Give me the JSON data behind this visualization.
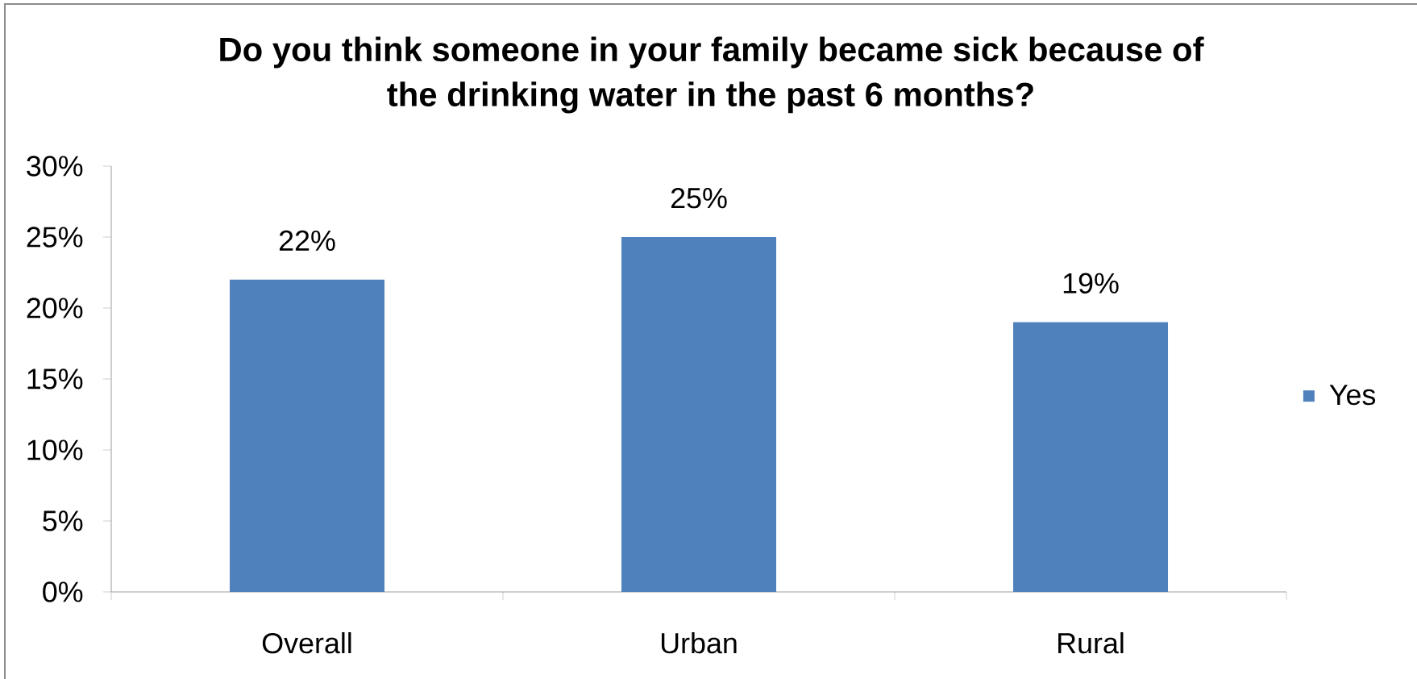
{
  "chart_data": {
    "type": "bar",
    "title": "Do you think someone in your family became sick because of the drinking water in the past 6 months?",
    "categories": [
      "Overall",
      "Urban",
      "Rural"
    ],
    "series": [
      {
        "name": "Yes",
        "color": "#4f81bd",
        "values": [
          22,
          25,
          19
        ],
        "value_labels": [
          "22%",
          "25%",
          "19%"
        ]
      }
    ],
    "ylim": [
      0,
      30
    ],
    "yticks": [
      {
        "value": 0,
        "label": "0%"
      },
      {
        "value": 5,
        "label": "5%"
      },
      {
        "value": 10,
        "label": "10%"
      },
      {
        "value": 15,
        "label": "15%"
      },
      {
        "value": 20,
        "label": "20%"
      },
      {
        "value": 25,
        "label": "25%"
      },
      {
        "value": 30,
        "label": "30%"
      }
    ],
    "legend": "right"
  }
}
